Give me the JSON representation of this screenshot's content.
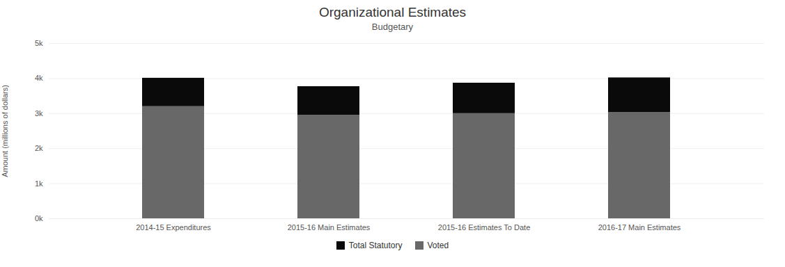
{
  "chart_data": {
    "type": "bar",
    "stacked": true,
    "title": "Organizational Estimates",
    "subtitle": "Budgetary",
    "ylabel": "Amount (millions of dollars)",
    "categories": [
      "2014-15 Expenditures",
      "2015-16 Main Estimates",
      "2015-16 Estimates To Date",
      "2016-17 Main Estimates"
    ],
    "series": [
      {
        "name": "Voted",
        "color": "#686868",
        "values": [
          3200,
          2950,
          3000,
          3030
        ]
      },
      {
        "name": "Total Statutory",
        "color": "#0a0a0a",
        "values": [
          810,
          820,
          870,
          990
        ]
      }
    ],
    "ylim": [
      0,
      5000
    ],
    "yticks": [
      {
        "value": 0,
        "label": "0k"
      },
      {
        "value": 1000,
        "label": "1k"
      },
      {
        "value": 2000,
        "label": "2k"
      },
      {
        "value": 3000,
        "label": "3k"
      },
      {
        "value": 4000,
        "label": "4k"
      },
      {
        "value": 5000,
        "label": "5k"
      }
    ],
    "grid": true,
    "legend": "bottom"
  }
}
